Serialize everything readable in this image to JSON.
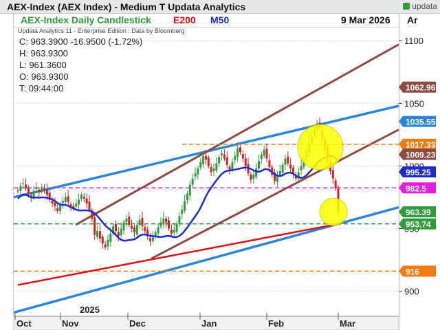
{
  "window": {
    "title": "AEX-Index (AEX Index) - Medium T  Updata Analytics"
  },
  "brand": {
    "name": "updata"
  },
  "chart_header": {
    "name": "AEX-Index Daily Candlestick",
    "e200_label": "E200",
    "m50_label": "M50",
    "date": "9 Mar 2026",
    "axis_head": "Ar"
  },
  "source_note": "Updata Analytics 11 - Enterprise Edition : Data by Bloomberg",
  "ohlc": {
    "c": "C:  963.3900  -16.9500 (-1.72%)",
    "h": "H:  963.9300",
    "l": "L:  961.3600",
    "o": "O:  963.9300",
    "t": "T:  09:44:00"
  },
  "colors": {
    "up": "#2e9c3a",
    "down": "#d42020",
    "e200": "#e01010",
    "m50": "#1c2cc8",
    "trend_blue": "#2a86d8",
    "channel_brown": "#8b4a42",
    "orange": "#f07c10",
    "magenta": "#e020e0",
    "green_line": "#1c8a2c",
    "highlight": "#ffff00"
  },
  "chart_data": {
    "type": "candlestick",
    "title": "AEX-Index Daily Candlestick",
    "y_axis": {
      "ticks": [
        900,
        950,
        1000,
        1050,
        1100
      ],
      "range": [
        880,
        1110
      ],
      "grid": true
    },
    "x_axis": {
      "months": [
        "Oct",
        "Nov",
        "Dec",
        "Jan",
        "Feb",
        "Mar"
      ],
      "year_label": "2025"
    },
    "price_labels": [
      {
        "value": 1062.96,
        "text": "1062.96",
        "color": "#8b4a42"
      },
      {
        "value": 1035.55,
        "text": "1035.55",
        "color": "#2a86d8"
      },
      {
        "value": 1017.33,
        "text": "1017.33",
        "color": "#f07c10"
      },
      {
        "value": 1009.23,
        "text": "1009.23",
        "color": "#8b4a42"
      },
      {
        "value": 995.25,
        "text": "995.25",
        "color": "#1c2cc8"
      },
      {
        "value": 982.5,
        "text": "982.5",
        "color": "#e020e0"
      },
      {
        "value": 963.39,
        "text": "963.39",
        "color": "#2e9c3a"
      },
      {
        "value": 953.74,
        "text": "953.74",
        "color": "#2e9c3a"
      },
      {
        "value": 916,
        "text": "916",
        "color": "#f07c10"
      }
    ],
    "horizontal_levels": [
      {
        "value": 1017.33,
        "style": "dashed",
        "color": "#f07c10"
      },
      {
        "value": 982.5,
        "style": "dashed",
        "color": "#e020e0"
      },
      {
        "value": 953.74,
        "style": "dashed",
        "color": "#1c8a2c"
      },
      {
        "value": 916,
        "style": "dashed",
        "color": "#f07c10"
      }
    ],
    "closes": [
      980,
      984,
      986,
      982,
      978,
      975,
      980,
      982,
      979,
      983,
      981,
      977,
      973,
      970,
      968,
      964,
      969,
      972,
      975,
      971,
      968,
      966,
      970,
      973,
      977,
      974,
      970,
      965,
      958,
      945,
      948,
      942,
      938,
      935,
      941,
      946,
      952,
      948,
      944,
      950,
      955,
      958,
      953,
      950,
      947,
      953,
      957,
      952,
      948,
      944,
      940,
      943,
      947,
      951,
      955,
      958,
      955,
      950,
      946,
      949,
      954,
      960,
      965,
      972,
      978,
      985,
      990,
      994,
      998,
      1003,
      1008,
      1005,
      1000,
      995,
      998,
      1002,
      1007,
      1010,
      1006,
      1001,
      997,
      1003,
      1008,
      1014,
      1011,
      1006,
      1000,
      994,
      989,
      993,
      998,
      1004,
      1009,
      1013,
      1006,
      999,
      993,
      988,
      992,
      996,
      1001,
      1006,
      1002,
      998,
      994,
      990,
      995,
      1000,
      1006,
      1012,
      1018,
      1023,
      1029,
      1034,
      1030,
      1022,
      1013,
      1004,
      996,
      990,
      982,
      963.39
    ]
  }
}
